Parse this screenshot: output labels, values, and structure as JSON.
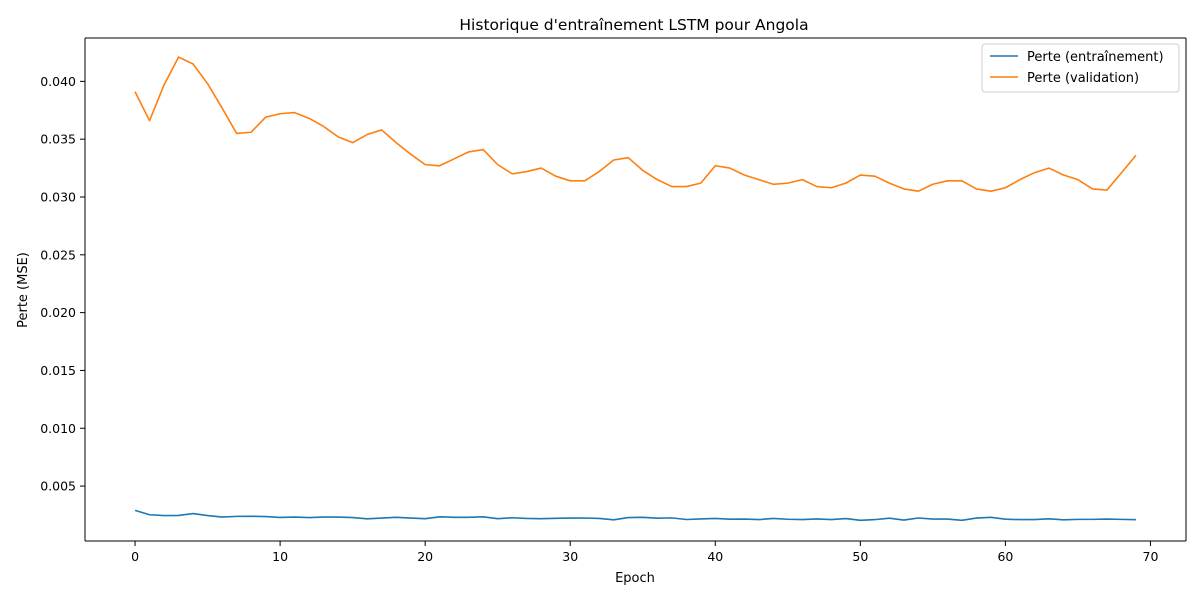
{
  "chart_data": {
    "type": "line",
    "title": "Historique d'entraînement LSTM pour Angola",
    "xlabel": "Epoch",
    "ylabel": "Perte (MSE)",
    "xlim": [
      -3.45,
      72.45
    ],
    "ylim": [
      0.00025,
      0.04375
    ],
    "x_ticks": [
      0,
      10,
      20,
      30,
      40,
      50,
      60,
      70
    ],
    "y_ticks": [
      0.005,
      0.01,
      0.015,
      0.02,
      0.025,
      0.03,
      0.035,
      0.04
    ],
    "y_tick_labels": [
      "0.005",
      "0.010",
      "0.015",
      "0.020",
      "0.025",
      "0.030",
      "0.035",
      "0.040"
    ],
    "x_tick_labels": [
      "0",
      "10",
      "20",
      "30",
      "40",
      "50",
      "60",
      "70"
    ],
    "grid": false,
    "legend_position": "top-right",
    "x": [
      0,
      1,
      2,
      3,
      4,
      5,
      6,
      7,
      8,
      9,
      10,
      11,
      12,
      13,
      14,
      15,
      16,
      17,
      18,
      19,
      20,
      21,
      22,
      23,
      24,
      25,
      26,
      27,
      28,
      29,
      30,
      31,
      32,
      33,
      34,
      35,
      36,
      37,
      38,
      39,
      40,
      41,
      42,
      43,
      44,
      45,
      46,
      47,
      48,
      49,
      50,
      51,
      52,
      53,
      54,
      55,
      56,
      57,
      58,
      59,
      60,
      61,
      62,
      63,
      64,
      65,
      66,
      67,
      68,
      69
    ],
    "series": [
      {
        "name": "Perte (entraînement)",
        "color": "#1f77b4",
        "values": [
          0.0029,
          0.00252,
          0.00245,
          0.00246,
          0.00262,
          0.00245,
          0.00232,
          0.00238,
          0.00239,
          0.00236,
          0.00229,
          0.00232,
          0.00228,
          0.00232,
          0.00232,
          0.00228,
          0.00217,
          0.00223,
          0.0023,
          0.00223,
          0.00218,
          0.00234,
          0.0023,
          0.0023,
          0.00234,
          0.00218,
          0.00226,
          0.0022,
          0.00218,
          0.00221,
          0.00223,
          0.00224,
          0.0022,
          0.00208,
          0.00228,
          0.0023,
          0.00222,
          0.00225,
          0.00211,
          0.00216,
          0.0022,
          0.00214,
          0.00215,
          0.0021,
          0.0022,
          0.00213,
          0.0021,
          0.00216,
          0.0021,
          0.00219,
          0.00204,
          0.0021,
          0.00222,
          0.00206,
          0.00224,
          0.00215,
          0.00215,
          0.00204,
          0.00223,
          0.0023,
          0.00214,
          0.0021,
          0.0021,
          0.00217,
          0.00208,
          0.00212,
          0.00212,
          0.00215,
          0.00212,
          0.00209
        ]
      },
      {
        "name": "Perte (validation)",
        "color": "#ff7f0e",
        "values": [
          0.0391,
          0.0366,
          0.0397,
          0.0421,
          0.0415,
          0.0398,
          0.0377,
          0.0355,
          0.0356,
          0.0369,
          0.0372,
          0.0373,
          0.0368,
          0.0361,
          0.0352,
          0.0347,
          0.0354,
          0.0358,
          0.0347,
          0.0337,
          0.0328,
          0.0327,
          0.0333,
          0.0339,
          0.0341,
          0.0328,
          0.032,
          0.0322,
          0.0325,
          0.0318,
          0.0314,
          0.0314,
          0.0322,
          0.0332,
          0.0334,
          0.0323,
          0.0315,
          0.0309,
          0.0309,
          0.0312,
          0.0327,
          0.0325,
          0.0319,
          0.0315,
          0.0311,
          0.0312,
          0.0315,
          0.0309,
          0.0308,
          0.0312,
          0.0319,
          0.0318,
          0.0312,
          0.0307,
          0.0305,
          0.0311,
          0.0314,
          0.0314,
          0.0307,
          0.0305,
          0.0308,
          0.0315,
          0.0321,
          0.0325,
          0.0319,
          0.0315,
          0.0307,
          0.0306,
          0.0321,
          0.0336
        ]
      }
    ]
  }
}
